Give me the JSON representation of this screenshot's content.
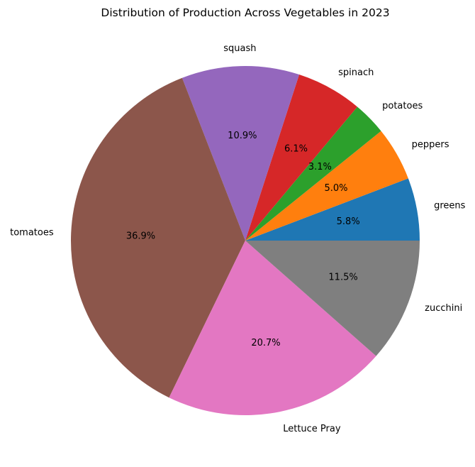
{
  "chart_data": {
    "type": "pie",
    "title": "Distribution of Production Across Vegetables in 2023",
    "start_angle_deg": 0,
    "direction": "counterclockwise",
    "legend": "none",
    "slices": [
      {
        "label": "greens",
        "value": 5.8,
        "pct_label": "5.8%",
        "color": "#1f77b4"
      },
      {
        "label": "peppers",
        "value": 5.0,
        "pct_label": "5.0%",
        "color": "#ff7f0e"
      },
      {
        "label": "potatoes",
        "value": 3.1,
        "pct_label": "3.1%",
        "color": "#2ca02c"
      },
      {
        "label": "spinach",
        "value": 6.1,
        "pct_label": "6.1%",
        "color": "#d62728"
      },
      {
        "label": "squash",
        "value": 10.9,
        "pct_label": "10.9%",
        "color": "#9467bd"
      },
      {
        "label": "tomatoes",
        "value": 36.9,
        "pct_label": "36.9%",
        "color": "#8c564b"
      },
      {
        "label": "Lettuce Pray",
        "value": 20.7,
        "pct_label": "20.7%",
        "color": "#e377c2"
      },
      {
        "label": "zucchini",
        "value": 11.5,
        "pct_label": "11.5%",
        "color": "#7f7f7f"
      }
    ]
  }
}
